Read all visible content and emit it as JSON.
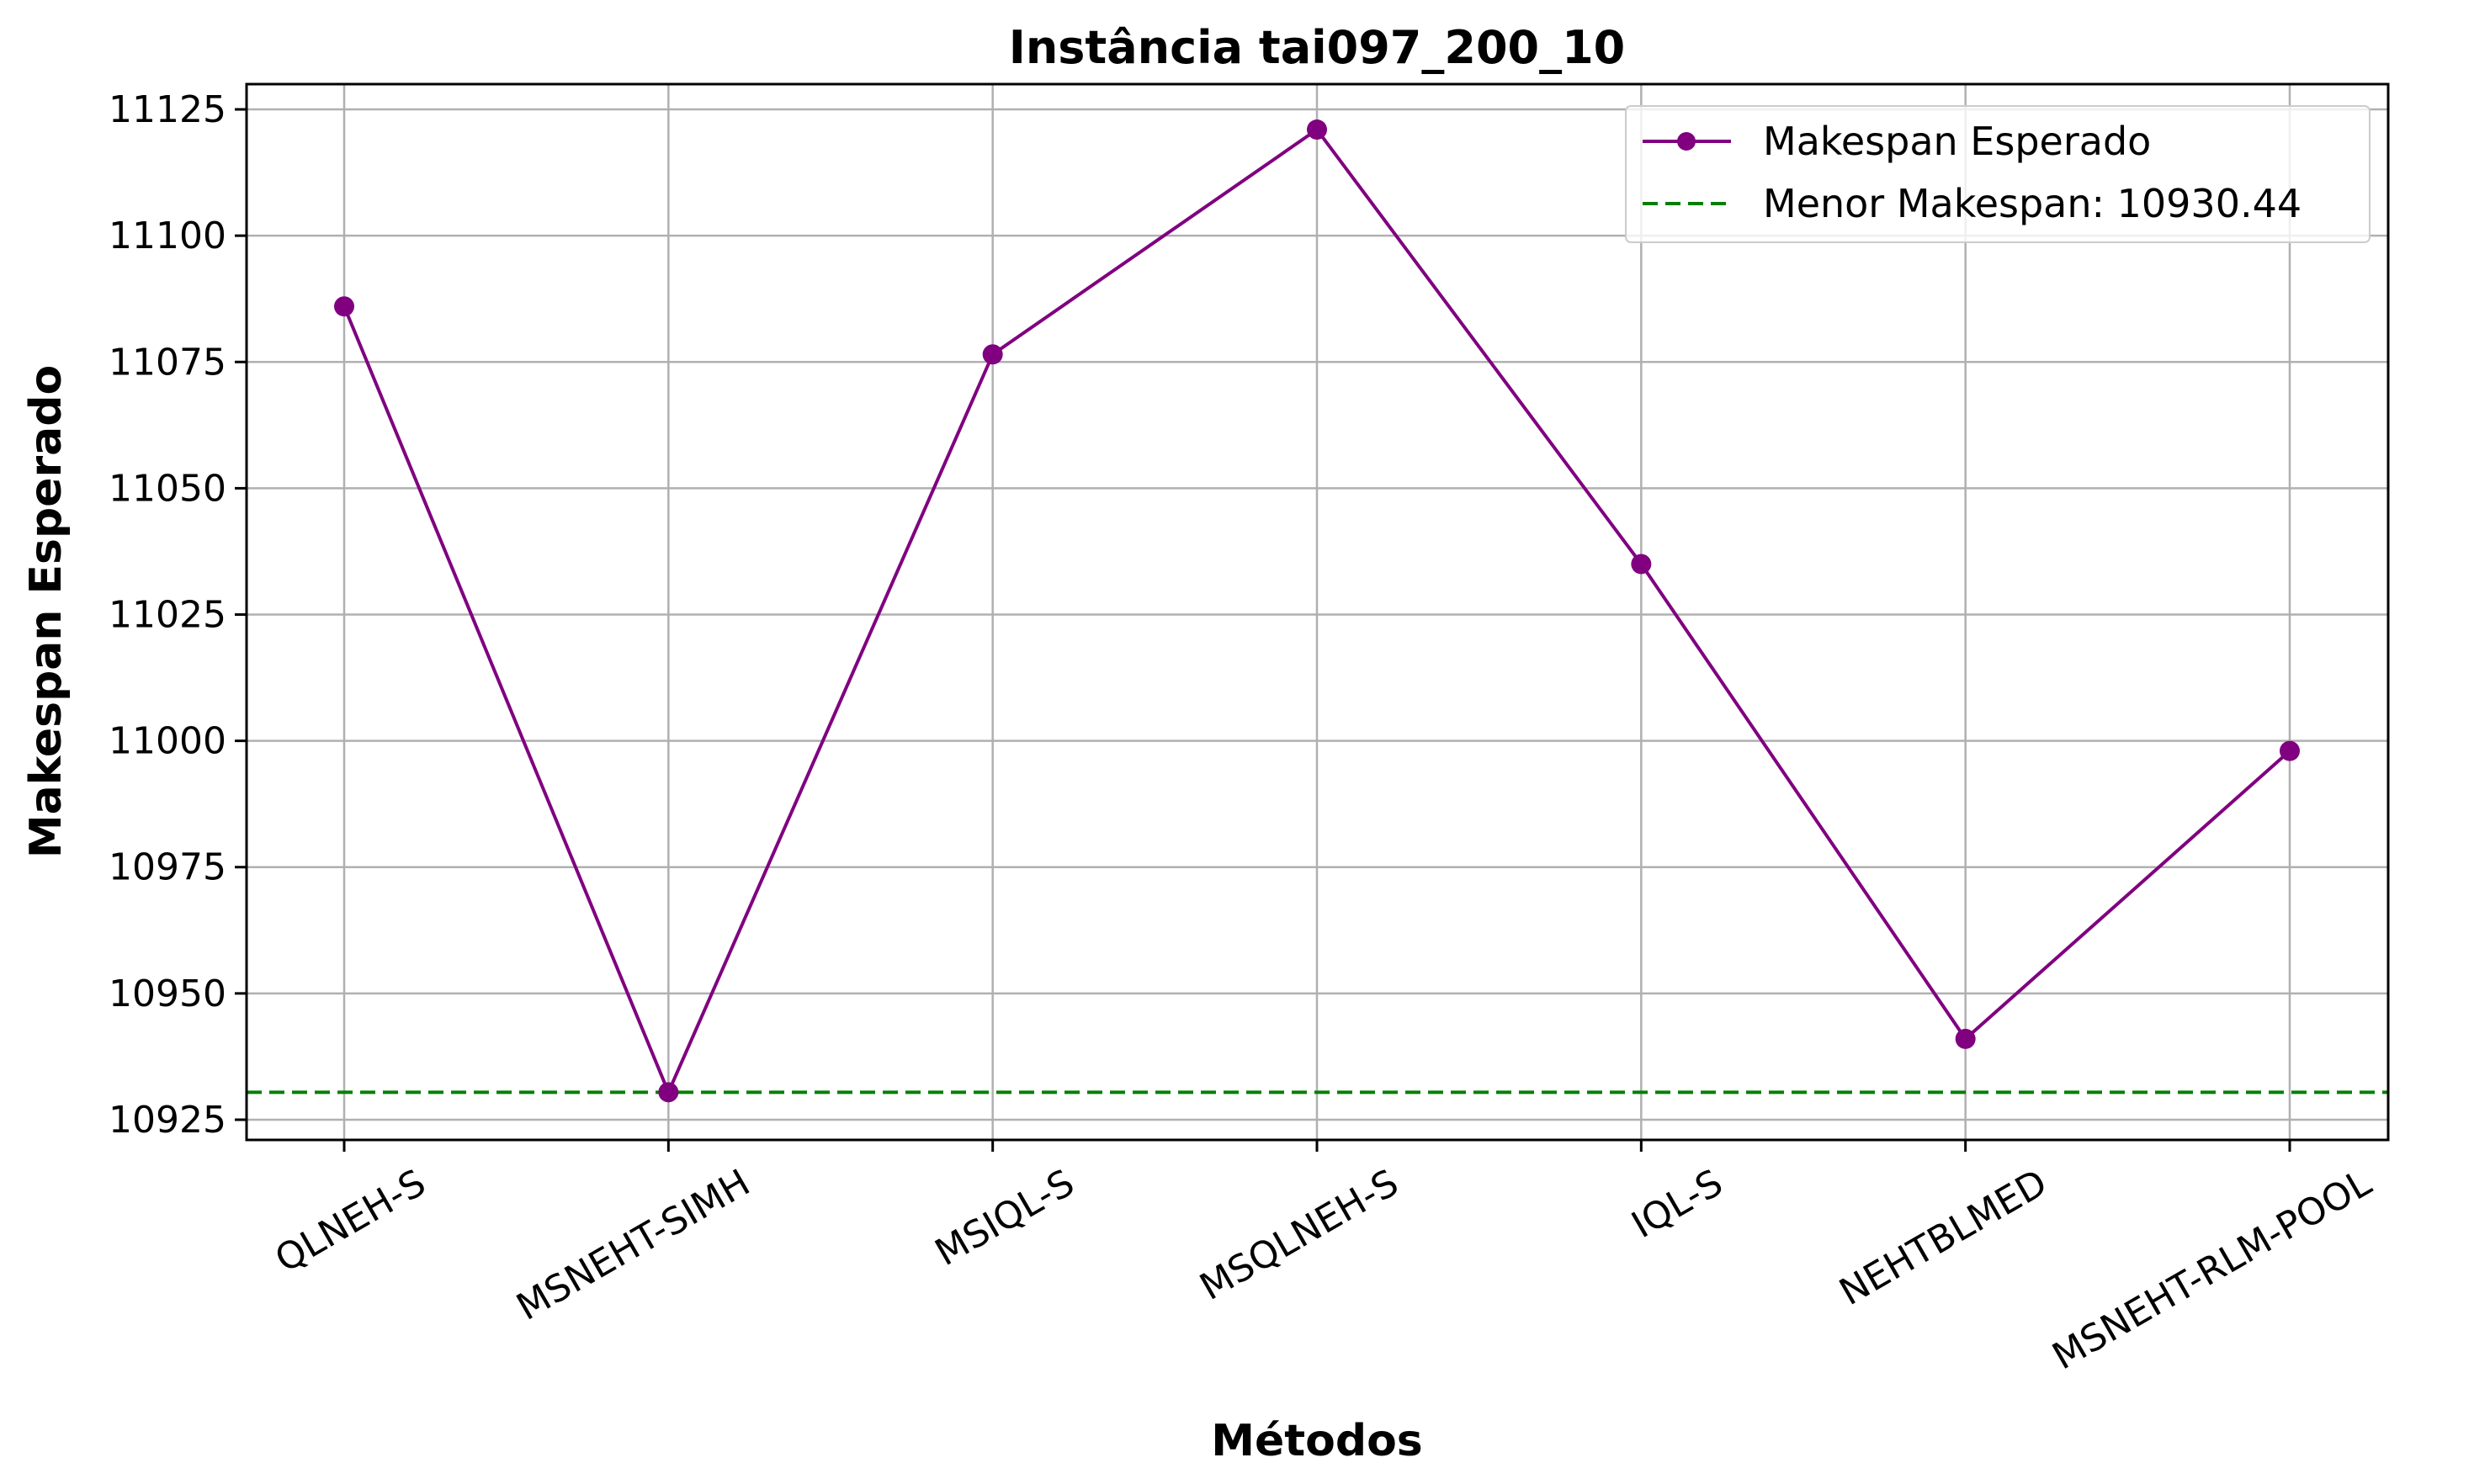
{
  "chart_data": {
    "type": "line",
    "title": "Instância tai097_200_10",
    "xlabel": "Métodos",
    "ylabel": "Makespan Esperado",
    "categories": [
      "QLNEH-S",
      "MSNEHT-SIMH",
      "MSIQL-S",
      "MSQLNEH-S",
      "IQL-S",
      "NEHTBLMED",
      "MSNEHT-RLM-POOL"
    ],
    "series": [
      {
        "name": "Makespan Esperado",
        "values": [
          11086,
          10930.44,
          11076.5,
          11121,
          11035,
          10941,
          10998
        ],
        "color": "#800080",
        "marker": "circle"
      }
    ],
    "reference_lines": [
      {
        "name": "Menor Makespan: 10930.44",
        "value": 10930.44,
        "color": "#008000",
        "style": "dashed"
      }
    ],
    "ylim": [
      10921,
      11130
    ],
    "yticks": [
      10925,
      10950,
      10975,
      11000,
      11025,
      11050,
      11075,
      11100,
      11125
    ],
    "grid": true,
    "legend_position": "top-right"
  }
}
